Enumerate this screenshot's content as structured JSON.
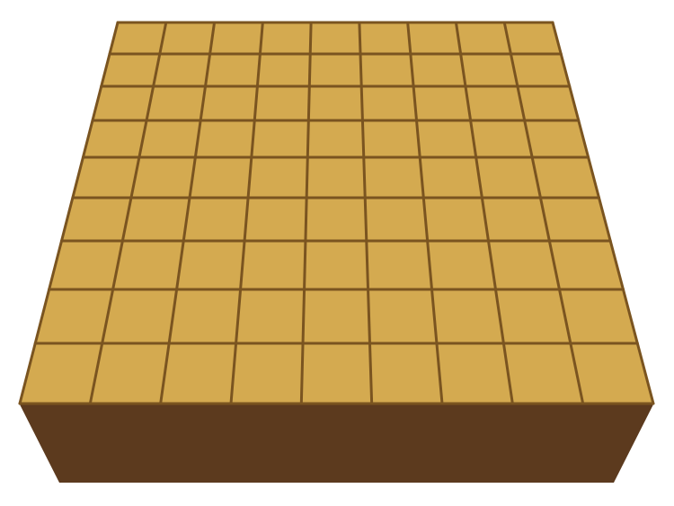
{
  "board": {
    "game": "shogi",
    "rows": 9,
    "columns": 9,
    "pieces": [],
    "colors": {
      "surface": "#D4AA50",
      "grid_line": "#7A5420",
      "side": "#5C3A1E",
      "background": "#FFFFFF"
    }
  }
}
